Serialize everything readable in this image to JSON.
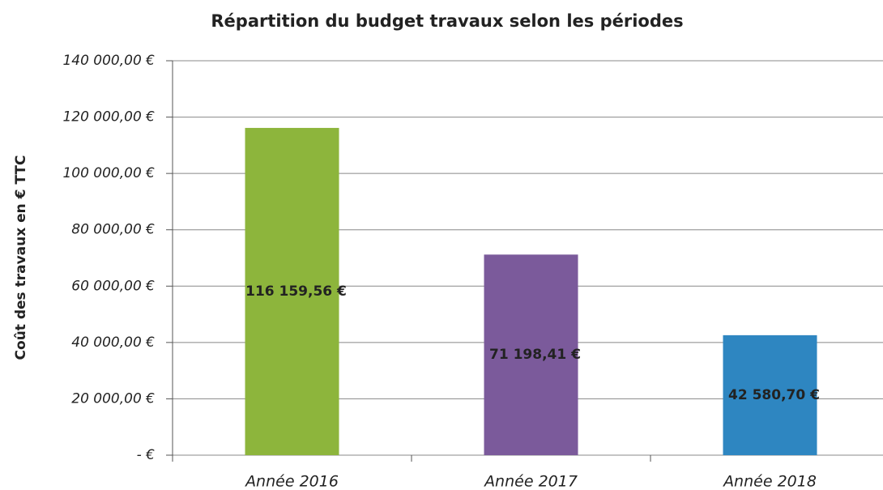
{
  "chart_data": {
    "type": "bar",
    "title": "Répartition du budget travaux selon les périodes",
    "y_label": "Coût des travaux en € TTC",
    "categories": [
      "Année 2016",
      "Année 2017",
      "Année 2018"
    ],
    "values": [
      116159.56,
      71198.41,
      42580.7
    ],
    "value_labels": [
      "116 159,56 €",
      "71 198,41 €",
      "42 580,70 €"
    ],
    "colors": [
      "#8db53c",
      "#7b5a9b",
      "#2e86c1"
    ],
    "ylim": [
      0,
      140000
    ],
    "yticks": [
      {
        "value": 0,
        "label": "-   €"
      },
      {
        "value": 20000,
        "label": "20 000,00 €"
      },
      {
        "value": 40000,
        "label": "40 000,00 €"
      },
      {
        "value": 60000,
        "label": "60 000,00 €"
      },
      {
        "value": 80000,
        "label": "80 000,00 €"
      },
      {
        "value": 100000,
        "label": "100 000,00 €"
      },
      {
        "value": 120000,
        "label": "120 000,00 €"
      },
      {
        "value": 140000,
        "label": "140 000,00 €"
      }
    ],
    "grid": true
  }
}
